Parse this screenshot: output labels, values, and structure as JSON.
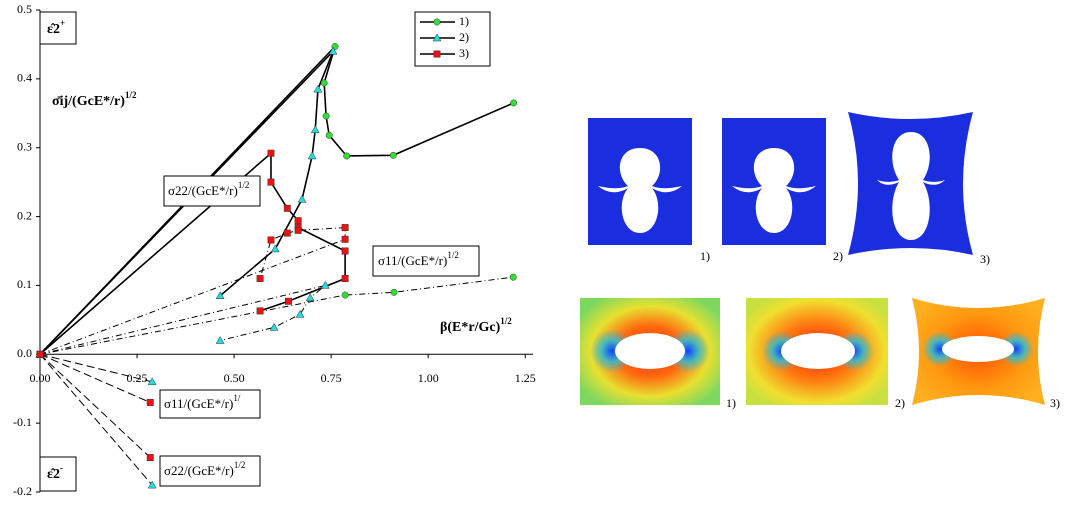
{
  "chart_data": {
    "type": "line",
    "xlim": [
      0,
      1.27
    ],
    "ylim": [
      -0.2,
      0.5
    ],
    "xticks": [
      {
        "value": 0,
        "label": "0.00"
      },
      0.25,
      {
        "value": 0.5,
        "label": "0.50"
      },
      0.75,
      {
        "value": 1,
        "label": "1.00"
      },
      1.25
    ],
    "yticks": [
      -0.2,
      -0.1,
      {
        "value": 0,
        "label": "0.0"
      },
      0.1,
      0.2,
      0.3,
      0.4,
      0.5
    ],
    "legend": "top-right",
    "annotations": [
      {
        "text": "ε̂2",
        "sup": "+"
      },
      {
        "text": "σ̄ij/(GcE*/r)",
        "sup": "1/2"
      },
      {
        "text": "σ22/(GcE*/r)",
        "sup": "1/2"
      },
      {
        "text": "σ11/(GcE*/r)",
        "sup": "1/2"
      },
      {
        "text": "β(E*r/Gc)",
        "sup": "1/2"
      },
      {
        "text": "σ11/(GcE*/r)",
        "sup": "1/"
      },
      {
        "text": "σ22/(GcE*/r)",
        "sup": "1/2"
      },
      {
        "text": "ε̂2",
        "sup": "-"
      }
    ],
    "series": [
      {
        "name": "1)",
        "color": "#33dd33",
        "marker": "circle",
        "curves": [
          {
            "style": "solid",
            "x": [
              0,
              0.76,
              0.732,
              0.737,
              0.745,
              0.79,
              0.91,
              1.22
            ],
            "values": [
              0,
              0.447,
              0.394,
              0.346,
              0.318,
              0.288,
              0.289,
              0.365
            ]
          },
          {
            "style": "dashdot",
            "x": [
              0,
              0.786,
              0.912,
              1.219
            ],
            "values": [
              0,
              0.086,
              0.09,
              0.112
            ]
          }
        ]
      },
      {
        "name": "2)",
        "color": "#22dddd",
        "marker": "triangle",
        "curves": [
          {
            "style": "solid",
            "x": [
              0,
              0.755,
              0.716,
              0.709,
              0.701,
              0.675,
              0.606,
              0.464
            ],
            "values": [
              0,
              0.44,
              0.385,
              0.326,
              0.288,
              0.225,
              0.153,
              0.085
            ]
          },
          {
            "style": "dashdot",
            "x": [
              0,
              0.735,
              0.696,
              0.67,
              0.603,
              0.464
            ],
            "values": [
              0,
              0.1,
              0.082,
              0.058,
              0.039,
              0.02
            ]
          },
          {
            "style": "dashed",
            "x": [
              0,
              0.289
            ],
            "values": [
              0,
              -0.04
            ]
          },
          {
            "style": "dashed",
            "x": [
              0,
              0.289
            ],
            "values": [
              0,
              -0.19
            ]
          }
        ]
      },
      {
        "name": "3)",
        "color": "#ee1111",
        "marker": "square",
        "curves": [
          {
            "style": "solid",
            "x": [
              0,
              0.595,
              0.595,
              0.637,
              0.665,
              0.665,
              0.786,
              0.786,
              0.64,
              0.567
            ],
            "values": [
              0,
              0.292,
              0.25,
              0.212,
              0.194,
              0.184,
              0.15,
              0.11,
              0.077,
              0.063
            ]
          },
          {
            "style": "dashdot",
            "x": [
              0,
              0.786,
              0.786,
              0.665,
              0.637,
              0.595,
              0.567
            ],
            "values": [
              0,
              0.167,
              0.184,
              0.18,
              0.176,
              0.166,
              0.11
            ]
          },
          {
            "style": "dashed",
            "x": [
              0,
              0.284
            ],
            "values": [
              0,
              -0.07
            ]
          },
          {
            "style": "dashed",
            "x": [
              0,
              0.284
            ],
            "values": [
              0,
              -0.15
            ]
          }
        ]
      }
    ]
  },
  "panels": {
    "top_labels": [
      "1)",
      "2)",
      "3)"
    ],
    "bottom_labels": [
      "1)",
      "2)",
      "3)"
    ]
  }
}
